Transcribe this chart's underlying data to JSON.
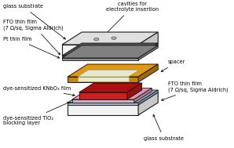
{
  "labels": {
    "glass_substrate_top": "glass substrate",
    "fto_top": "FTO thin film\n(7 Ω/sq, Sigma Aldrich)",
    "pt": "Pt thin film",
    "cavities": "cavities for\nelectrolyte insertion",
    "spacer": "spacer",
    "fto_bottom_right": "FTO thin film\n(7 Ω/sq, Sigma Aldrich)",
    "knbo3": "dye-sensitized KNbO₃ film",
    "tio2": "dye-sensitized TiO₂\nblocking layer",
    "glass_substrate_bottom": "glass substrate"
  },
  "colors": {
    "white": "#ffffff",
    "glass_face": "#f2f2f2",
    "glass_top": "#e0e0e0",
    "glass_side": "#c8c8c8",
    "fto_face": "#606060",
    "fto_top": "#505050",
    "fto_side": "#404040",
    "pt_face": "#909090",
    "pt_top_c": "#808080",
    "pt_side": "#707070",
    "gold_face": "#c8830a",
    "gold_top": "#e09818",
    "gold_side": "#a06808",
    "hole_fill": "#e8e8d0",
    "pink_face": "#e8a8c0",
    "pink_top": "#d898b0",
    "pink_side": "#c07890",
    "red_face": "#cc2020",
    "red_top": "#aa1010",
    "red_side": "#991010",
    "blue_face": "#a0b8cc",
    "blue_top": "#90a8bc",
    "blue_side": "#8098ac",
    "black": "#000000",
    "cavity_fill": "#aaaaaa"
  }
}
